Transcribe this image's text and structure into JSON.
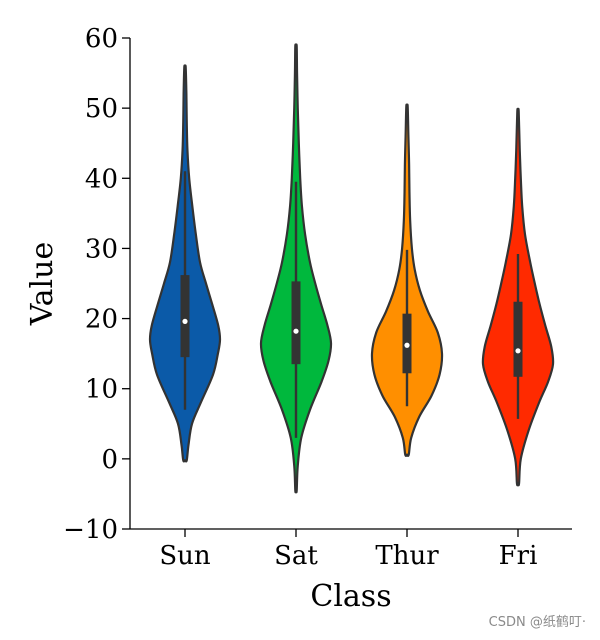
{
  "chart_data": {
    "type": "violin",
    "title": "",
    "xlabel": "Class",
    "ylabel": "Value",
    "ylim": [
      -10,
      60
    ],
    "yticks": [
      -10,
      0,
      10,
      20,
      30,
      40,
      50,
      60
    ],
    "yticklabels": [
      "−10",
      "0",
      "10",
      "20",
      "30",
      "40",
      "50",
      "60"
    ],
    "categories": [
      "Sun",
      "Sat",
      "Thur",
      "Fri"
    ],
    "colors": [
      "#0b5aa8",
      "#00b83d",
      "#ff8f00",
      "#ff2a00"
    ],
    "series": [
      {
        "name": "Sun",
        "min": 7,
        "q1": 14.5,
        "median": 19.6,
        "q3": 26.2,
        "max": 41,
        "kde_min": -0.2,
        "kde_max": 55.8,
        "density": [
          [
            -0.2,
            0.05
          ],
          [
            2,
            0.1
          ],
          [
            5,
            0.2
          ],
          [
            8,
            0.45
          ],
          [
            12,
            0.8
          ],
          [
            15,
            0.94
          ],
          [
            17,
            1.0
          ],
          [
            19,
            0.95
          ],
          [
            22,
            0.78
          ],
          [
            25,
            0.6
          ],
          [
            28,
            0.43
          ],
          [
            32,
            0.31
          ],
          [
            36,
            0.21
          ],
          [
            40,
            0.12
          ],
          [
            44,
            0.07
          ],
          [
            48,
            0.05
          ],
          [
            52,
            0.04
          ],
          [
            55.8,
            0.02
          ]
        ]
      },
      {
        "name": "Sat",
        "min": 3,
        "q1": 13.5,
        "median": 18.2,
        "q3": 25.3,
        "max": 39.5,
        "kde_min": -4.5,
        "kde_max": 58.8,
        "density": [
          [
            -4.5,
            0.02
          ],
          [
            -1,
            0.05
          ],
          [
            3,
            0.15
          ],
          [
            7,
            0.4
          ],
          [
            11,
            0.73
          ],
          [
            14,
            0.93
          ],
          [
            16.5,
            1.0
          ],
          [
            19,
            0.9
          ],
          [
            22,
            0.72
          ],
          [
            25,
            0.55
          ],
          [
            28,
            0.4
          ],
          [
            32,
            0.26
          ],
          [
            36,
            0.17
          ],
          [
            40,
            0.12
          ],
          [
            45,
            0.08
          ],
          [
            50,
            0.05
          ],
          [
            55,
            0.03
          ],
          [
            58.8,
            0.02
          ]
        ]
      },
      {
        "name": "Thur",
        "min": 7.5,
        "q1": 12.2,
        "median": 16.2,
        "q3": 20.7,
        "max": 29.8,
        "kde_min": 0.6,
        "kde_max": 50.2,
        "density": [
          [
            0.6,
            0.05
          ],
          [
            3,
            0.12
          ],
          [
            6,
            0.35
          ],
          [
            9,
            0.7
          ],
          [
            12,
            0.93
          ],
          [
            15,
            1.0
          ],
          [
            18,
            0.88
          ],
          [
            21,
            0.6
          ],
          [
            24,
            0.37
          ],
          [
            27,
            0.22
          ],
          [
            30,
            0.14
          ],
          [
            34,
            0.09
          ],
          [
            38,
            0.07
          ],
          [
            42,
            0.06
          ],
          [
            46,
            0.04
          ],
          [
            50.2,
            0.02
          ]
        ]
      },
      {
        "name": "Fri",
        "min": 5.7,
        "q1": 11.7,
        "median": 15.4,
        "q3": 22.4,
        "max": 29.2,
        "kde_min": -3.5,
        "kde_max": 49.5,
        "density": [
          [
            -3.5,
            0.03
          ],
          [
            0,
            0.08
          ],
          [
            4,
            0.3
          ],
          [
            8,
            0.6
          ],
          [
            11,
            0.86
          ],
          [
            13.5,
            1.0
          ],
          [
            16,
            0.95
          ],
          [
            19,
            0.78
          ],
          [
            22,
            0.62
          ],
          [
            25,
            0.48
          ],
          [
            28,
            0.35
          ],
          [
            32,
            0.2
          ],
          [
            36,
            0.12
          ],
          [
            40,
            0.08
          ],
          [
            44,
            0.05
          ],
          [
            49.5,
            0.02
          ]
        ]
      }
    ]
  },
  "watermark": "CSDN @纸鹤叮·"
}
